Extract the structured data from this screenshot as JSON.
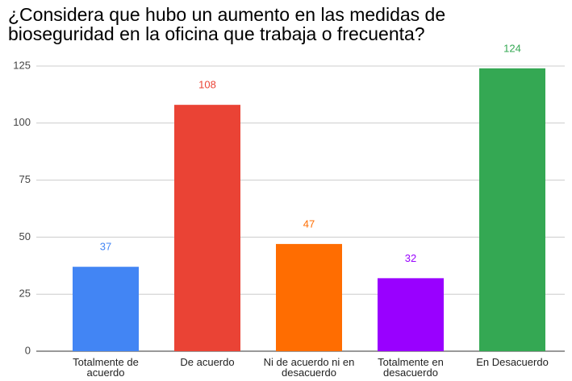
{
  "chart_data": {
    "type": "bar",
    "title": "¿Considera que hubo un aumento en las medidas de bioseguridad en la oficina que trabaja o frecuenta?",
    "categories": [
      "Totalmente de acuerdo",
      "De acuerdo",
      "Ni de acuerdo ni en desacuerdo",
      "Totalmente en desacuerdo",
      "En Desacuerdo"
    ],
    "values": [
      37,
      108,
      47,
      32,
      124
    ],
    "colors": [
      "#4285f4",
      "#ea4335",
      "#ff6d01",
      "#9900ff",
      "#34a853"
    ],
    "ylim": [
      0,
      125
    ],
    "yticks": [
      0,
      25,
      50,
      75,
      100,
      125
    ],
    "grid": true
  }
}
